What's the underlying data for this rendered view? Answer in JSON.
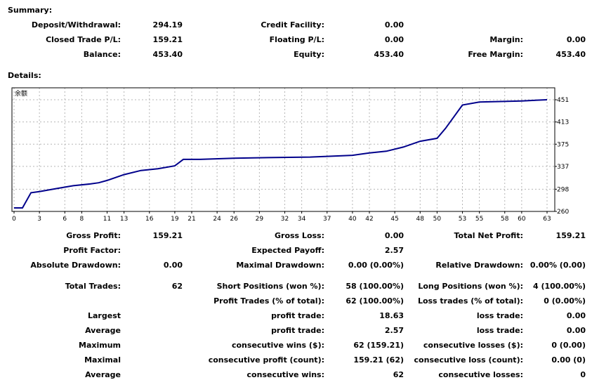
{
  "summary": {
    "heading": "Summary:",
    "deposit_label": "Deposit/Withdrawal:",
    "deposit_value": "294.19",
    "credit_label": "Credit Facility:",
    "credit_value": "0.00",
    "closed_label": "Closed Trade P/L:",
    "closed_value": "159.21",
    "floating_label": "Floating P/L:",
    "floating_value": "0.00",
    "margin_label": "Margin:",
    "margin_value": "0.00",
    "balance_label": "Balance:",
    "balance_value": "453.40",
    "equity_label": "Equity:",
    "equity_value": "453.40",
    "free_margin_label": "Free Margin:",
    "free_margin_value": "453.40"
  },
  "details": {
    "heading": "Details:",
    "rows": [
      [
        {
          "l": "Gross Profit:",
          "v": "159.21"
        },
        {
          "l": "Gross Loss:",
          "v": "0.00"
        },
        {
          "l": "Total Net Profit:",
          "v": "159.21"
        }
      ],
      [
        {
          "l": "Profit Factor:",
          "v": ""
        },
        {
          "l": "Expected Payoff:",
          "v": "2.57"
        },
        {
          "l": "",
          "v": ""
        }
      ],
      [
        {
          "l": "Absolute Drawdown:",
          "v": "0.00"
        },
        {
          "l": "Maximal Drawdown:",
          "v": "0.00 (0.00%)"
        },
        {
          "l": "Relative Drawdown:",
          "v": "0.00% (0.00)"
        }
      ],
      [
        {
          "l": "Total Trades:",
          "v": "62"
        },
        {
          "l": "Short Positions (won %):",
          "v": "58 (100.00%)"
        },
        {
          "l": "Long Positions (won %):",
          "v": "4 (100.00%)"
        }
      ],
      [
        {
          "l": "",
          "v": ""
        },
        {
          "l": "Profit Trades (% of total):",
          "v": "62 (100.00%)"
        },
        {
          "l": "Loss trades (% of total):",
          "v": "0 (0.00%)"
        }
      ],
      [
        {
          "l": "Largest",
          "v": ""
        },
        {
          "l": "profit trade:",
          "v": "18.63"
        },
        {
          "l": "loss trade:",
          "v": "0.00"
        }
      ],
      [
        {
          "l": "Average",
          "v": ""
        },
        {
          "l": "profit trade:",
          "v": "2.57"
        },
        {
          "l": "loss trade:",
          "v": "0.00"
        }
      ],
      [
        {
          "l": "Maximum",
          "v": ""
        },
        {
          "l": "consecutive wins ($):",
          "v": "62 (159.21)"
        },
        {
          "l": "consecutive losses ($):",
          "v": "0 (0.00)"
        }
      ],
      [
        {
          "l": "Maximal",
          "v": ""
        },
        {
          "l": "consecutive profit (count):",
          "v": "159.21 (62)"
        },
        {
          "l": "consecutive loss (count):",
          "v": "0.00 (0)"
        }
      ],
      [
        {
          "l": "Average",
          "v": ""
        },
        {
          "l": "consecutive wins:",
          "v": "62"
        },
        {
          "l": "consecutive losses:",
          "v": "0"
        }
      ]
    ]
  },
  "chart_data": {
    "type": "line",
    "legend": "余额",
    "x_ticks": [
      "0",
      "3",
      "6",
      "8",
      "11",
      "13",
      "16",
      "19",
      "21",
      "24",
      "26",
      "29",
      "32",
      "34",
      "37",
      "40",
      "42",
      "45",
      "48",
      "50",
      "53",
      "55",
      "58",
      "60",
      "63"
    ],
    "y_ticks": [
      "451",
      "413",
      "375",
      "337",
      "298",
      "260"
    ],
    "xlim": [
      0,
      63
    ],
    "ylim": [
      260,
      451
    ],
    "grid": true,
    "line_color": "#00008b",
    "series": [
      {
        "x": [
          0,
          1,
          2,
          3,
          5,
          7,
          9,
          10,
          11,
          13,
          15,
          17,
          19,
          20,
          22,
          26,
          30,
          35,
          40,
          42,
          44,
          46,
          48,
          50,
          51,
          53,
          55,
          60,
          63
        ],
        "y": [
          266,
          266,
          292,
          294,
          299,
          304,
          307,
          309,
          313,
          323,
          330,
          333,
          338,
          349,
          349,
          351,
          352,
          353,
          356,
          360,
          363,
          370,
          380,
          385,
          402,
          442,
          447,
          449,
          451
        ]
      }
    ]
  }
}
